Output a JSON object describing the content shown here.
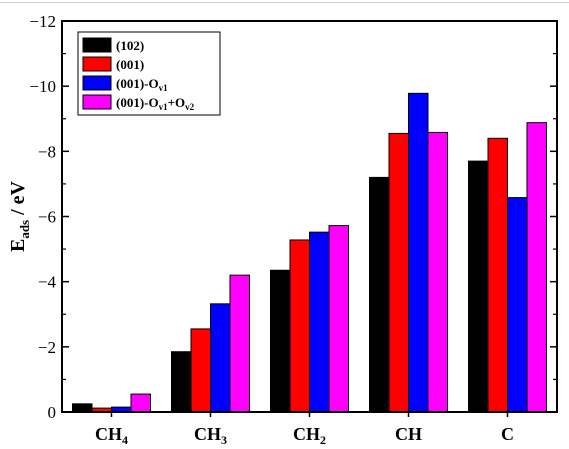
{
  "chart_data": {
    "type": "bar",
    "title": "",
    "xlabel": "",
    "ylabel": {
      "main": "E",
      "sub": "ads",
      "rest": " / eV"
    },
    "ylim": [
      0,
      -12
    ],
    "yticks": [
      0,
      -2,
      -4,
      -6,
      -8,
      -10,
      -12
    ],
    "ytick_labels": [
      "0",
      "−2",
      "−4",
      "−6",
      "−8",
      "−10",
      "−12"
    ],
    "categories": [
      {
        "main": "CH",
        "sub": "4"
      },
      {
        "main": "CH",
        "sub": "3"
      },
      {
        "main": "CH",
        "sub": "2"
      },
      {
        "main": "CH",
        "sub": ""
      },
      {
        "main": "C",
        "sub": ""
      }
    ],
    "series": [
      {
        "name": [
          {
            "t": "(102)"
          }
        ],
        "color": "#000000",
        "values": [
          -0.25,
          -1.85,
          -4.35,
          -7.2,
          -7.7
        ]
      },
      {
        "name": [
          {
            "t": "(001)"
          }
        ],
        "color": "#ff0000",
        "values": [
          -0.12,
          -2.55,
          -5.28,
          -8.55,
          -8.4
        ]
      },
      {
        "name": [
          {
            "t": "(001)-O"
          },
          {
            "t": "v1",
            "sub": true
          }
        ],
        "color": "#0000ff",
        "values": [
          -0.15,
          -3.32,
          -5.52,
          -9.78,
          -6.58
        ]
      },
      {
        "name": [
          {
            "t": "(001)-O"
          },
          {
            "t": "v1",
            "sub": true
          },
          {
            "t": "+O"
          },
          {
            "t": "v2",
            "sub": true
          }
        ],
        "color": "#ff00ff",
        "values": [
          -0.55,
          -4.2,
          -5.72,
          -8.58,
          -8.88
        ]
      }
    ],
    "legend_position": "top-left",
    "grid": false
  }
}
